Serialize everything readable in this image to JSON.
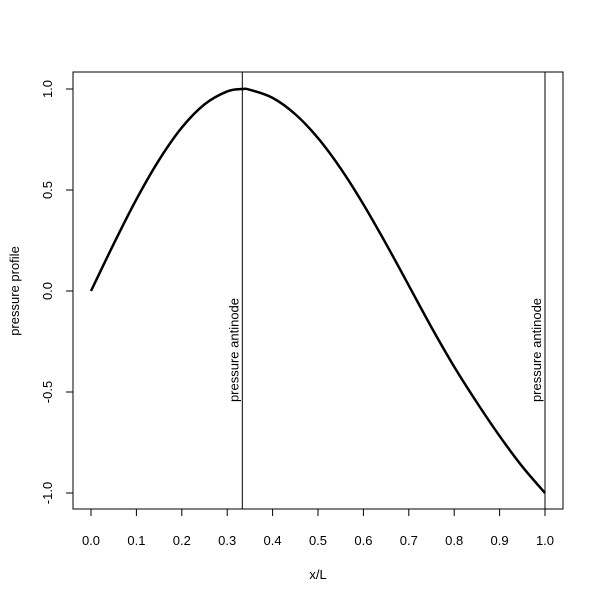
{
  "chart_data": {
    "type": "line",
    "title": "",
    "xlabel": "x/L",
    "ylabel": "pressure profile",
    "xlim": [
      0.0,
      1.0
    ],
    "ylim": [
      -1.0,
      1.0
    ],
    "x_ticks": [
      0.0,
      0.1,
      0.2,
      0.3,
      0.4,
      0.5,
      0.6,
      0.7,
      0.8,
      0.9,
      1.0
    ],
    "x_tick_labels": [
      "0.0",
      "0.1",
      "0.2",
      "0.3",
      "0.4",
      "0.5",
      "0.6",
      "0.7",
      "0.8",
      "0.9",
      "1.0"
    ],
    "y_ticks": [
      -1.0,
      -0.5,
      0.0,
      0.5,
      1.0
    ],
    "y_tick_labels": [
      "-1.0",
      "-0.5",
      "0.0",
      "0.5",
      "1.0"
    ],
    "grid": false,
    "line_color": "#000000",
    "series": [
      {
        "x": [
          0.0,
          0.05,
          0.1,
          0.15,
          0.2,
          0.25,
          0.3,
          0.3333,
          0.35,
          0.4,
          0.45,
          0.5,
          0.55,
          0.6,
          0.65,
          0.7,
          0.75,
          0.8,
          0.85,
          0.9,
          0.95,
          1.0
        ],
        "values": [
          0.0,
          0.233,
          0.454,
          0.649,
          0.809,
          0.924,
          0.988,
          1.0,
          0.996,
          0.956,
          0.875,
          0.757,
          0.606,
          0.429,
          0.233,
          0.027,
          -0.18,
          -0.375,
          -0.552,
          -0.718,
          -0.869,
          -1.0
        ]
      }
    ],
    "vertical_lines": [
      {
        "x": 0.3333,
        "label": "pressure antinode"
      },
      {
        "x": 1.0,
        "label": "pressure antinode"
      }
    ]
  }
}
